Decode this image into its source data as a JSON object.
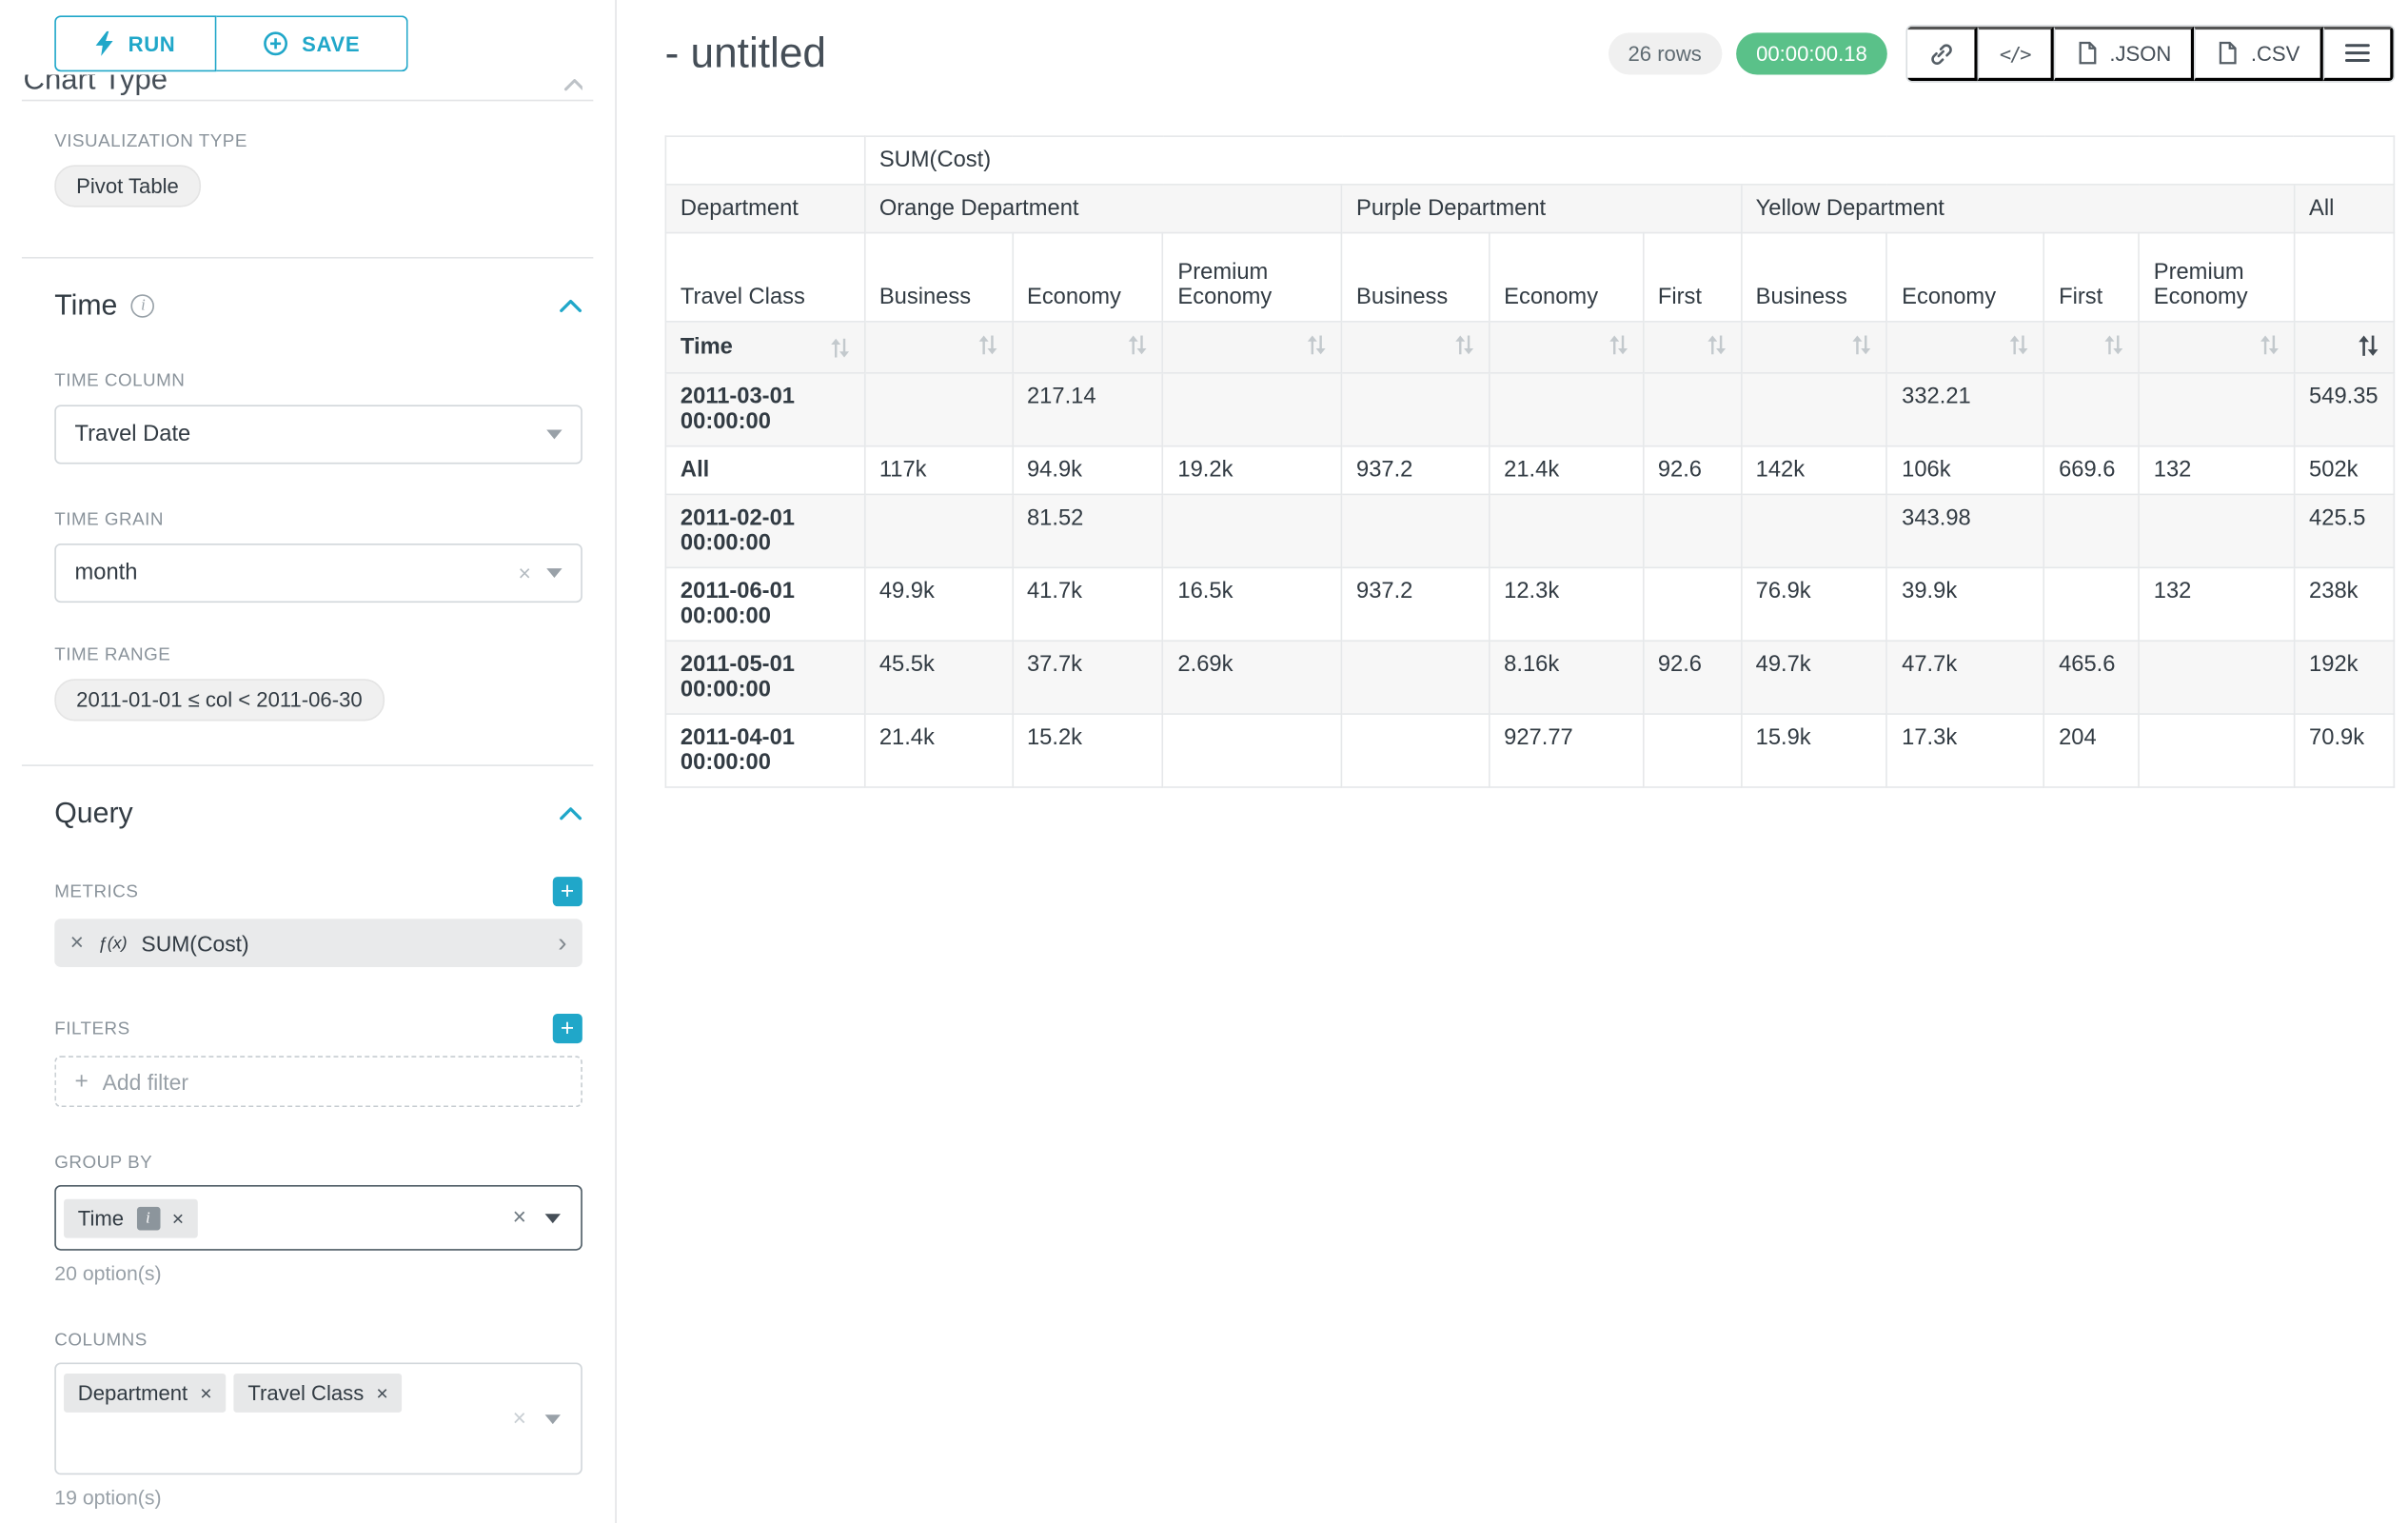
{
  "colors": {
    "accent": "#20a7c9",
    "success_badge": "#5ac189"
  },
  "glyphs": {
    "close": "×",
    "plus": "+",
    "chevron_right": "›",
    "code_icon": "</>",
    "info": "i"
  },
  "sidebar": {
    "run_button": "RUN",
    "save_button": "SAVE",
    "clipped_section_title": "Chart Type",
    "visualization": {
      "label": "VISUALIZATION TYPE",
      "value": "Pivot Table"
    },
    "time": {
      "title": "Time",
      "column_label": "TIME COLUMN",
      "column_value": "Travel Date",
      "grain_label": "TIME GRAIN",
      "grain_value": "month",
      "range_label": "TIME RANGE",
      "range_value": "2011-01-01 ≤ col < 2011-06-30"
    },
    "query": {
      "title": "Query",
      "metrics_label": "METRICS",
      "metric": {
        "fx": "ƒ(x)",
        "name": "SUM(Cost)"
      },
      "filters_label": "FILTERS",
      "add_filter": "Add filter",
      "group_by_label": "GROUP BY",
      "group_by_chips": [
        "Time"
      ],
      "group_by_hint": "20 option(s)",
      "columns_label": "COLUMNS",
      "columns_chips": [
        "Department",
        "Travel Class"
      ],
      "columns_hint": "19 option(s)"
    }
  },
  "header": {
    "title": "- untitled",
    "rows_badge": "26 rows",
    "timer_badge": "00:00:00.18",
    "json_button": ".JSON",
    "csv_button": ".CSV"
  },
  "pivot_table": {
    "metric_header": "SUM(Cost)",
    "row2_corner": "Department",
    "row3_corner": "Travel Class",
    "row4_corner": "Time",
    "column_groups": [
      {
        "label": "Orange Department",
        "span": 3
      },
      {
        "label": "Purple Department",
        "span": 3
      },
      {
        "label": "Yellow Department",
        "span": 4
      },
      {
        "label": "All",
        "span": 1
      }
    ],
    "travel_classes": [
      "Business",
      "Economy",
      "Premium Economy",
      "Business",
      "Economy",
      "First",
      "Business",
      "Economy",
      "First",
      "Premium Economy",
      ""
    ],
    "rows": [
      {
        "label": "2011-03-01 00:00:00",
        "values": [
          "",
          "217.14",
          "",
          "",
          "",
          "",
          "",
          "332.21",
          "",
          "",
          "549.35"
        ]
      },
      {
        "label": "All",
        "values": [
          "117k",
          "94.9k",
          "19.2k",
          "937.2",
          "21.4k",
          "92.6",
          "142k",
          "106k",
          "669.6",
          "132",
          "502k"
        ]
      },
      {
        "label": "2011-02-01 00:00:00",
        "values": [
          "",
          "81.52",
          "",
          "",
          "",
          "",
          "",
          "343.98",
          "",
          "",
          "425.5"
        ]
      },
      {
        "label": "2011-06-01 00:00:00",
        "values": [
          "49.9k",
          "41.7k",
          "16.5k",
          "937.2",
          "12.3k",
          "",
          "76.9k",
          "39.9k",
          "",
          "132",
          "238k"
        ]
      },
      {
        "label": "2011-05-01 00:00:00",
        "values": [
          "45.5k",
          "37.7k",
          "2.69k",
          "",
          "8.16k",
          "92.6",
          "49.7k",
          "47.7k",
          "465.6",
          "",
          "192k"
        ]
      },
      {
        "label": "2011-04-01 00:00:00",
        "values": [
          "21.4k",
          "15.2k",
          "",
          "",
          "927.77",
          "",
          "15.9k",
          "17.3k",
          "204",
          "",
          "70.9k"
        ]
      }
    ]
  }
}
